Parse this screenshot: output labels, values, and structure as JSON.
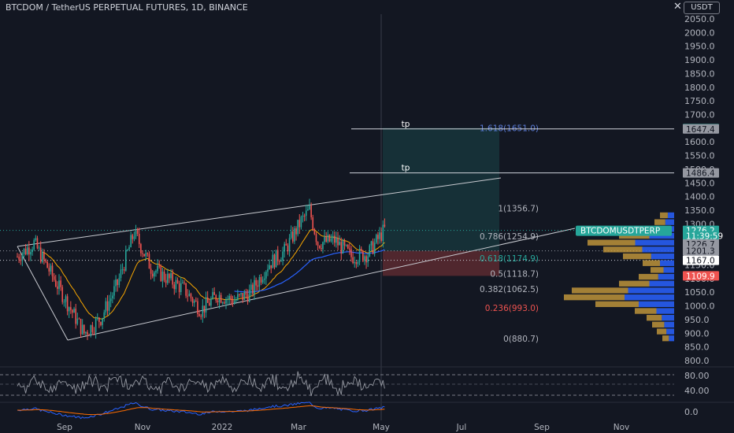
{
  "header": {
    "title": "BTCDOM / TetherUS PERPETUAL FUTURES, 1D, BINANCE",
    "currency": "USDT",
    "close_glyph": "✕"
  },
  "colors": {
    "background": "#131722",
    "axis_text": "#b2b5be",
    "up_candle": "#26a69a",
    "down_candle": "#ef5350",
    "ema_fast": "#f7a600",
    "ema_slow": "#2962ff",
    "rsi": "#9598a1",
    "macd": "#2962ff",
    "signal": "#ff6d00",
    "target_zone": "#26a69a",
    "stop_zone": "#ef5350",
    "volume_profile_up": "#2962ff",
    "volume_profile_down": "#c89b3c"
  },
  "chart_data": {
    "type": "candlestick",
    "symbol": "BTCDOM / TetherUS PERPETUAL FUTURES",
    "interval": "1D",
    "exchange": "BINANCE",
    "price_axis": {
      "ticks": [
        "2050.0",
        "2000.0",
        "1950.0",
        "1900.0",
        "1850.0",
        "1800.0",
        "1750.0",
        "1700.0",
        "1650.0",
        "1600.0",
        "1550.0",
        "1500.0",
        "1450.0",
        "1400.0",
        "1350.0",
        "1300.0",
        "1250.0",
        "1200.0",
        "1150.0",
        "1100.0",
        "1050.0",
        "1000.0",
        "950.0",
        "900.0",
        "850.0",
        "800.0"
      ],
      "ylim": [
        775,
        2070
      ]
    },
    "time_axis": {
      "ticks": [
        "Sep",
        "Nov",
        "2022",
        "Mar",
        "May",
        "Jul",
        "Sep",
        "Nov"
      ]
    },
    "oscillator_axis": {
      "ticks": [
        "80.00",
        "40.00",
        "0.0"
      ]
    },
    "price_path": [
      [
        0,
        1180
      ],
      [
        10,
        1230
      ],
      [
        20,
        1120
      ],
      [
        30,
        1010
      ],
      [
        40,
        900
      ],
      [
        50,
        955
      ],
      [
        60,
        1080
      ],
      [
        70,
        1270
      ],
      [
        80,
        1140
      ],
      [
        90,
        1100
      ],
      [
        100,
        1060
      ],
      [
        110,
        985
      ],
      [
        120,
        1040
      ],
      [
        130,
        1020
      ],
      [
        140,
        1050
      ],
      [
        150,
        1150
      ],
      [
        160,
        1200
      ],
      [
        170,
        1310
      ],
      [
        175,
        1350
      ],
      [
        180,
        1230
      ],
      [
        190,
        1240
      ],
      [
        200,
        1180
      ],
      [
        210,
        1190
      ],
      [
        220,
        1280
      ]
    ],
    "fibonacci": [
      {
        "level": "1.618",
        "price": 1651.0,
        "label": "1.618(1651.0)",
        "color": "#5b7bd5"
      },
      {
        "level": "1",
        "price": 1356.7,
        "label": "1(1356.7)",
        "color": "#b2b5be"
      },
      {
        "level": "0.786",
        "price": 1254.9,
        "label": "0.786(1254.9)",
        "color": "#b2b5be"
      },
      {
        "level": "0.618",
        "price": 1174.9,
        "label": "0.618(1174.9)",
        "color": "#26a69a"
      },
      {
        "level": "0.5",
        "price": 1118.7,
        "label": "0.5(1118.7)",
        "color": "#b2b5be"
      },
      {
        "level": "0.382",
        "price": 1062.5,
        "label": "0.382(1062.5)",
        "color": "#b2b5be"
      },
      {
        "level": "0.236",
        "price": 993.0,
        "label": "0.236(993.0)",
        "color": "#ef5350"
      },
      {
        "level": "0",
        "price": 880.7,
        "label": "0(880.7)",
        "color": "#b2b5be"
      }
    ],
    "targets": [
      {
        "label": "tp",
        "price": 1647.4
      },
      {
        "label": "tp",
        "price": 1486.4
      }
    ],
    "position": {
      "entry": 1201.3,
      "target": 1651.0,
      "stop": 1109.9
    },
    "price_badges": [
      {
        "value": "1648.7",
        "price": 1648.7,
        "bg": "#26a69a",
        "fg": "#ffffff"
      },
      {
        "value": "1647.4",
        "price": 1647.4,
        "bg": "#9598a1",
        "fg": "#131722"
      },
      {
        "value": "1486.4",
        "price": 1486.4,
        "bg": "#9598a1",
        "fg": "#131722"
      },
      {
        "value": "1276.2",
        "price": 1276.2,
        "bg": "#26a69a",
        "fg": "#ffffff"
      },
      {
        "value": "11:39:59",
        "price": 1256.0,
        "bg": "#26a69a",
        "fg": "#ffffff"
      },
      {
        "value": "1226.7",
        "price": 1226.7,
        "bg": "#9598a1",
        "fg": "#131722"
      },
      {
        "value": "1201.3",
        "price": 1201.3,
        "bg": "#9598a1",
        "fg": "#131722"
      },
      {
        "value": "1167.0",
        "price": 1167.0,
        "bg": "#ffffff",
        "fg": "#131722"
      },
      {
        "value": "1109.9",
        "price": 1109.9,
        "bg": "#ef5350",
        "fg": "#ffffff"
      }
    ],
    "symbol_badge": {
      "text": "BTCDOMUSDTPERP",
      "price": 1276.2
    }
  }
}
